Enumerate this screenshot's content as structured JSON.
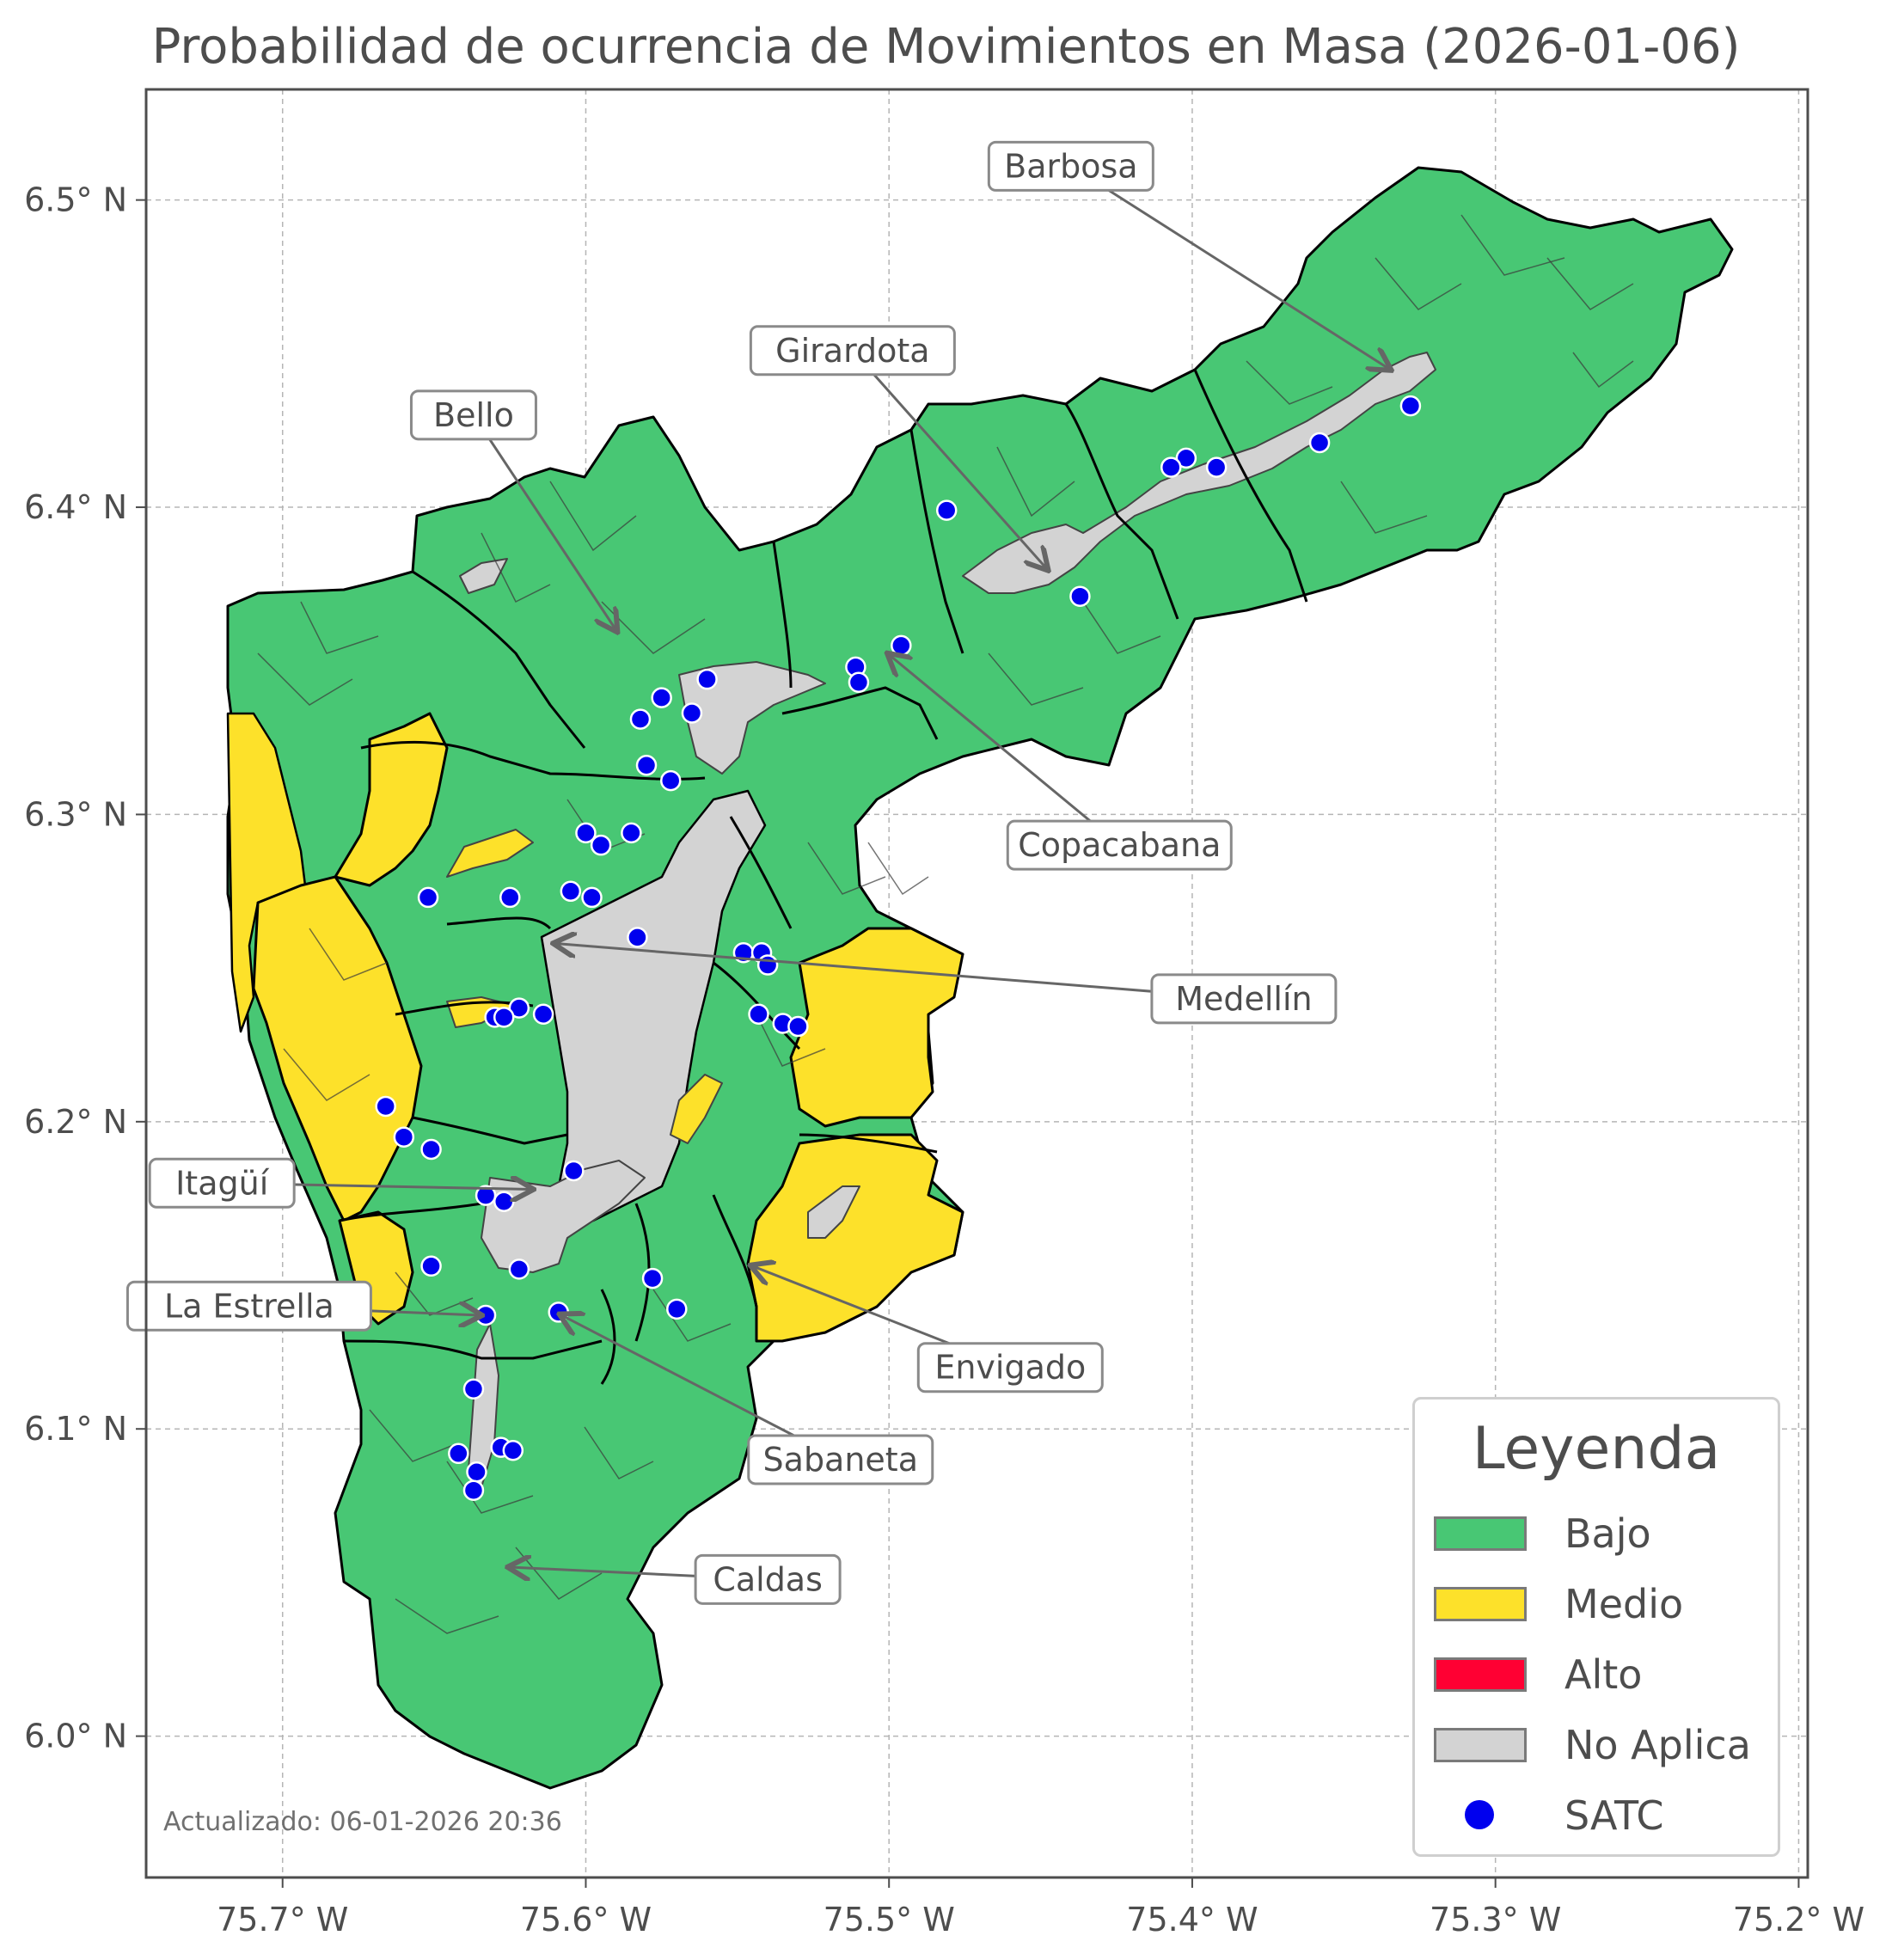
{
  "title": "Probabilidad de ocurrencia de Movimientos en Masa (2026-01-06)",
  "axes": {
    "x_ticks": [
      "75.7° W",
      "75.6° W",
      "75.5° W",
      "75.4° W",
      "75.3° W",
      "75.2° W"
    ],
    "y_ticks": [
      "6.5° N",
      "6.4° N",
      "6.3° N",
      "6.2° N",
      "6.1° N",
      "6.0° N"
    ],
    "x_values": [
      -75.7,
      -75.6,
      -75.5,
      -75.4,
      -75.3,
      -75.2
    ],
    "y_values": [
      6.5,
      6.4,
      6.3,
      6.2,
      6.1,
      6.0
    ],
    "xlim": [
      -75.745,
      -75.197
    ],
    "ylim": [
      5.954,
      6.536
    ],
    "grid": true
  },
  "colors": {
    "bajo": "#48c774",
    "medio": "#fde12a",
    "alto": "#ff0033",
    "no_aplica": "#d3d3d3",
    "satc": "#0000ee"
  },
  "legend": {
    "title": "Leyenda",
    "items": [
      {
        "label": "Bajo",
        "type": "swatch",
        "color": "#48c774"
      },
      {
        "label": "Medio",
        "type": "swatch",
        "color": "#fde12a"
      },
      {
        "label": "Alto",
        "type": "swatch",
        "color": "#ff0033"
      },
      {
        "label": "No Aplica",
        "type": "swatch",
        "color": "#d3d3d3"
      },
      {
        "label": "SATC",
        "type": "dot",
        "color": "#0000ee"
      }
    ]
  },
  "municipalities": [
    {
      "name": "Barbosa",
      "lon": -75.335,
      "lat": 6.445
    },
    {
      "name": "Girardota",
      "lon": -75.448,
      "lat": 6.38
    },
    {
      "name": "Bello",
      "lon": -75.59,
      "lat": 6.36
    },
    {
      "name": "Copacabana",
      "lon": -75.5,
      "lat": 6.352
    },
    {
      "name": "Medellín",
      "lon": -75.61,
      "lat": 6.258
    },
    {
      "name": "Itagüí",
      "lon": -75.618,
      "lat": 6.178
    },
    {
      "name": "La Estrella",
      "lon": -75.635,
      "lat": 6.137
    },
    {
      "name": "Envigado",
      "lon": -75.545,
      "lat": 6.153
    },
    {
      "name": "Sabaneta",
      "lon": -75.608,
      "lat": 6.137
    },
    {
      "name": "Caldas",
      "lon": -75.625,
      "lat": 6.055
    }
  ],
  "satc_stations": [
    [
      -75.328,
      6.433
    ],
    [
      -75.358,
      6.421
    ],
    [
      -75.392,
      6.413
    ],
    [
      -75.402,
      6.416
    ],
    [
      -75.407,
      6.413
    ],
    [
      -75.481,
      6.399
    ],
    [
      -75.437,
      6.371
    ],
    [
      -75.496,
      6.355
    ],
    [
      -75.511,
      6.348
    ],
    [
      -75.51,
      6.343
    ],
    [
      -75.56,
      6.344
    ],
    [
      -75.565,
      6.333
    ],
    [
      -75.575,
      6.338
    ],
    [
      -75.582,
      6.331
    ],
    [
      -75.58,
      6.316
    ],
    [
      -75.572,
      6.311
    ],
    [
      -75.6,
      6.294
    ],
    [
      -75.595,
      6.29
    ],
    [
      -75.585,
      6.294
    ],
    [
      -75.652,
      6.273
    ],
    [
      -75.625,
      6.273
    ],
    [
      -75.605,
      6.275
    ],
    [
      -75.598,
      6.273
    ],
    [
      -75.583,
      6.26
    ],
    [
      -75.548,
      6.255
    ],
    [
      -75.542,
      6.255
    ],
    [
      -75.54,
      6.251
    ],
    [
      -75.543,
      6.235
    ],
    [
      -75.535,
      6.232
    ],
    [
      -75.53,
      6.231
    ],
    [
      -75.622,
      6.237
    ],
    [
      -75.614,
      6.235
    ],
    [
      -75.63,
      6.234
    ],
    [
      -75.627,
      6.234
    ],
    [
      -75.666,
      6.205
    ],
    [
      -75.66,
      6.195
    ],
    [
      -75.651,
      6.191
    ],
    [
      -75.604,
      6.184
    ],
    [
      -75.633,
      6.176
    ],
    [
      -75.627,
      6.174
    ],
    [
      -75.651,
      6.153
    ],
    [
      -75.622,
      6.152
    ],
    [
      -75.578,
      6.149
    ],
    [
      -75.57,
      6.139
    ],
    [
      -75.609,
      6.138
    ],
    [
      -75.633,
      6.137
    ],
    [
      -75.637,
      6.113
    ],
    [
      -75.628,
      6.094
    ],
    [
      -75.624,
      6.093
    ],
    [
      -75.642,
      6.092
    ],
    [
      -75.636,
      6.086
    ],
    [
      -75.637,
      6.08
    ]
  ],
  "callouts": [
    {
      "label": "Barbosa",
      "box_lon": -75.44,
      "box_lat": 6.511
    },
    {
      "label": "Girardota",
      "box_lon": -75.512,
      "box_lat": 6.451
    },
    {
      "label": "Bello",
      "box_lon": -75.637,
      "box_lat": 6.43
    },
    {
      "label": "Copacabana",
      "box_lon": -75.424,
      "box_lat": 6.29
    },
    {
      "label": "Medellín",
      "box_lon": -75.383,
      "box_lat": 6.24
    },
    {
      "label": "Itagüí",
      "box_lon": -75.72,
      "box_lat": 6.18
    },
    {
      "label": "La Estrella",
      "box_lon": -75.711,
      "box_lat": 6.14
    },
    {
      "label": "Envigado",
      "box_lon": -75.46,
      "box_lat": 6.12
    },
    {
      "label": "Sabaneta",
      "box_lon": -75.516,
      "box_lat": 6.09
    },
    {
      "label": "Caldas",
      "box_lon": -75.54,
      "box_lat": 6.051
    }
  ],
  "updated_text": "Actualizado: 06-01-2026 20:36"
}
